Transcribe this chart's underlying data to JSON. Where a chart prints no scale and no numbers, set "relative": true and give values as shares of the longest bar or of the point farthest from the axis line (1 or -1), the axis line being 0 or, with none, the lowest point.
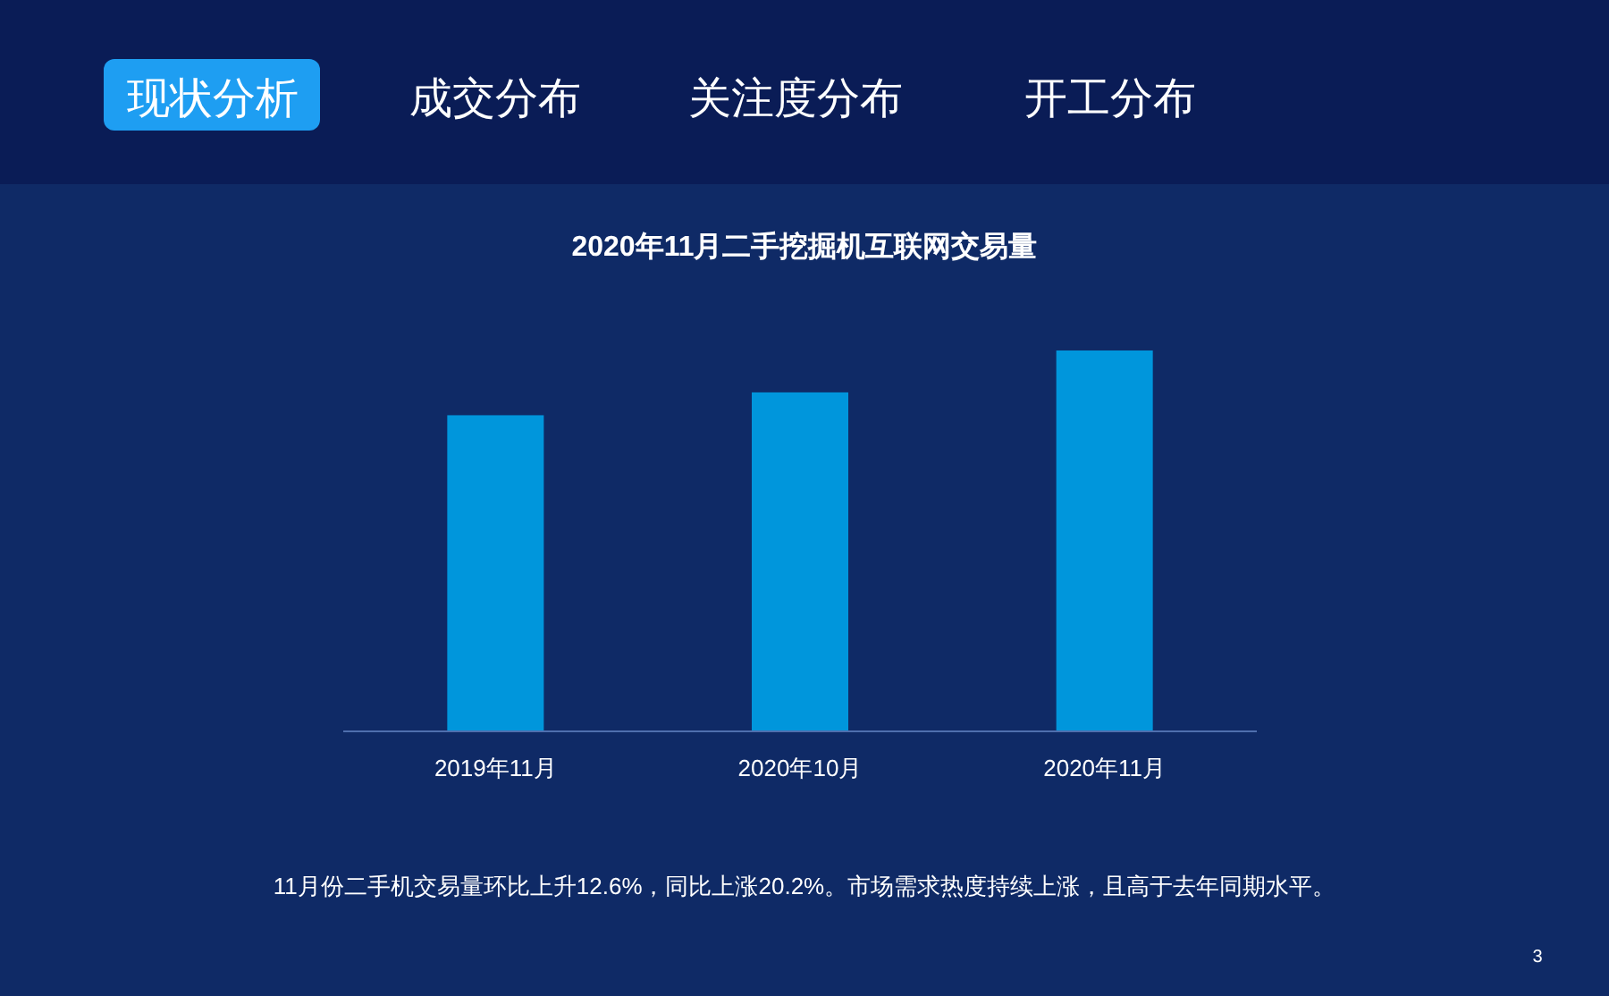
{
  "chart_data": {
    "type": "bar",
    "title": "2020年11月二手挖掘机互联网交易量",
    "categories": [
      "2019年11月",
      "2020年10月",
      "2020年11月"
    ],
    "values": [
      0.83,
      0.89,
      1
    ],
    "relative": true,
    "color": "#0096dc",
    "annotations": [
      "现状分析",
      "成交分布",
      "关注度分布",
      "开工分布",
      "11月份二手机交易量环比上升12.6%，同比上涨20.2%。市场需求热度持续上涨，且高于去年同期水平。",
      "3"
    ]
  }
}
